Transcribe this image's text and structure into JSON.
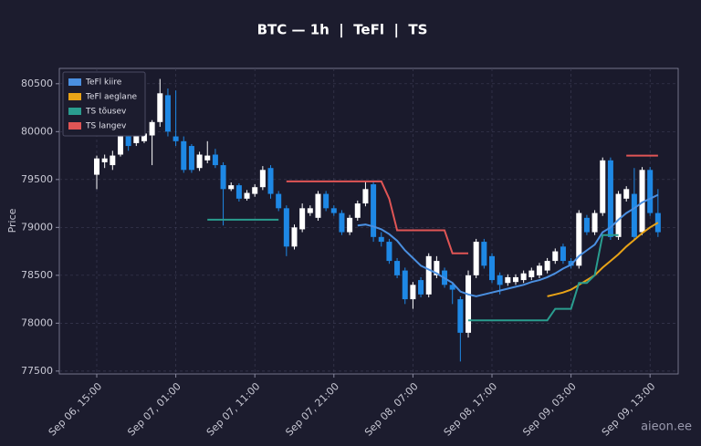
{
  "chart_data": {
    "type": "candlestick",
    "title": "BTC — 1h  |  TeFl  |  TS",
    "y_label": "Price",
    "watermark": "aieon.ee",
    "up_color": "#ffffff",
    "down_color": "#1e88e5",
    "grid": true,
    "legend": "upper-left",
    "x": [
      "Sep 06, 15:00",
      "Sep 06, 16:00",
      "Sep 06, 17:00",
      "Sep 06, 18:00",
      "Sep 06, 19:00",
      "Sep 06, 20:00",
      "Sep 06, 21:00",
      "Sep 06, 22:00",
      "Sep 06, 23:00",
      "Sep 07, 00:00",
      "Sep 07, 01:00",
      "Sep 07, 02:00",
      "Sep 07, 03:00",
      "Sep 07, 04:00",
      "Sep 07, 05:00",
      "Sep 07, 06:00",
      "Sep 07, 07:00",
      "Sep 07, 08:00",
      "Sep 07, 09:00",
      "Sep 07, 10:00",
      "Sep 07, 11:00",
      "Sep 07, 12:00",
      "Sep 07, 13:00",
      "Sep 07, 14:00",
      "Sep 07, 15:00",
      "Sep 07, 16:00",
      "Sep 07, 17:00",
      "Sep 07, 18:00",
      "Sep 07, 19:00",
      "Sep 07, 20:00",
      "Sep 07, 21:00",
      "Sep 07, 22:00",
      "Sep 07, 23:00",
      "Sep 08, 00:00",
      "Sep 08, 01:00",
      "Sep 08, 02:00",
      "Sep 08, 03:00",
      "Sep 08, 04:00",
      "Sep 08, 05:00",
      "Sep 08, 06:00",
      "Sep 08, 07:00",
      "Sep 08, 08:00",
      "Sep 08, 09:00",
      "Sep 08, 10:00",
      "Sep 08, 11:00",
      "Sep 08, 12:00",
      "Sep 08, 13:00",
      "Sep 08, 14:00",
      "Sep 08, 15:00",
      "Sep 08, 16:00",
      "Sep 08, 17:00",
      "Sep 08, 18:00",
      "Sep 08, 19:00",
      "Sep 08, 20:00",
      "Sep 08, 21:00",
      "Sep 08, 22:00",
      "Sep 08, 23:00",
      "Sep 09, 00:00",
      "Sep 09, 01:00",
      "Sep 09, 02:00",
      "Sep 09, 03:00",
      "Sep 09, 04:00",
      "Sep 09, 05:00",
      "Sep 09, 06:00",
      "Sep 09, 07:00",
      "Sep 09, 08:00",
      "Sep 09, 09:00",
      "Sep 09, 10:00",
      "Sep 09, 11:00",
      "Sep 09, 12:00",
      "Sep 09, 13:00",
      "Sep 09, 14:00"
    ],
    "open": [
      79550,
      79680,
      79650,
      79760,
      79950,
      79880,
      79900,
      79960,
      80100,
      80380,
      79950,
      79900,
      79850,
      79620,
      79700,
      79760,
      79650,
      79400,
      79440,
      79300,
      79350,
      79420,
      79620,
      79350,
      79200,
      78800,
      78980,
      79150,
      79100,
      79350,
      79200,
      79150,
      78950,
      79100,
      79250,
      79450,
      78900,
      78850,
      78650,
      78550,
      78250,
      78450,
      78300,
      78500,
      78550,
      78400,
      78250,
      77900,
      78500,
      78850,
      78700,
      78500,
      78420,
      78430,
      78450,
      78480,
      78500,
      78550,
      78650,
      78800,
      78650,
      78600,
      79100,
      78950,
      79150,
      79700,
      78900,
      79300,
      79350,
      78950,
      79600,
      79150
    ],
    "high": [
      79750,
      79760,
      79800,
      79980,
      79970,
      80000,
      80020,
      80120,
      80550,
      80450,
      80430,
      79950,
      79870,
      79790,
      79900,
      79820,
      79680,
      79470,
      79460,
      79390,
      79450,
      79640,
      79650,
      79380,
      79230,
      79030,
      79250,
      79230,
      79380,
      79380,
      79230,
      79180,
      79130,
      79280,
      79480,
      79480,
      78950,
      78880,
      78680,
      78580,
      78430,
      78480,
      78730,
      78700,
      78580,
      78430,
      78280,
      78550,
      78880,
      78880,
      78730,
      78530,
      78510,
      78510,
      78550,
      78580,
      78630,
      78680,
      78780,
      78830,
      78680,
      79180,
      79130,
      79180,
      79730,
      79730,
      79380,
      79430,
      79620,
      79630,
      79630,
      79400
    ],
    "low": [
      79400,
      79620,
      79600,
      79740,
      79800,
      79850,
      79880,
      79650,
      80050,
      79950,
      79850,
      79570,
      79570,
      79590,
      79670,
      79620,
      79020,
      79380,
      79270,
      79280,
      79320,
      79390,
      79300,
      79170,
      78700,
      78770,
      78950,
      79120,
      79070,
      79170,
      79120,
      78920,
      78920,
      79070,
      79220,
      78850,
      78800,
      78620,
      78470,
      78200,
      78150,
      78270,
      78270,
      78470,
      78370,
      78200,
      77600,
      77850,
      78470,
      78570,
      78420,
      78300,
      78390,
      78400,
      78420,
      78450,
      78470,
      78520,
      78620,
      78620,
      78570,
      78570,
      78920,
      78920,
      79120,
      78870,
      78870,
      79270,
      78870,
      78920,
      79120,
      78900
    ],
    "close": [
      79720,
      79720,
      79750,
      79950,
      79850,
      79960,
      79980,
      80100,
      80400,
      80000,
      79900,
      79600,
      79600,
      79760,
      79750,
      79650,
      79400,
      79440,
      79300,
      79360,
      79420,
      79600,
      79350,
      79200,
      78800,
      79000,
      79200,
      79200,
      79350,
      79200,
      79150,
      78950,
      79100,
      79250,
      79400,
      78900,
      78850,
      78650,
      78500,
      78250,
      78400,
      78300,
      78700,
      78650,
      78400,
      78350,
      77900,
      78500,
      78850,
      78600,
      78450,
      78400,
      78480,
      78480,
      78520,
      78550,
      78600,
      78650,
      78750,
      78650,
      78600,
      79150,
      78950,
      79150,
      79700,
      78900,
      79350,
      79400,
      78900,
      79600,
      79150,
      78950
    ],
    "series": [
      {
        "name": "TeFl kiire",
        "color": "#4a8fe0",
        "values": [
          null,
          null,
          null,
          null,
          null,
          null,
          null,
          null,
          null,
          null,
          null,
          null,
          null,
          null,
          null,
          null,
          null,
          null,
          null,
          null,
          null,
          null,
          null,
          null,
          null,
          null,
          null,
          null,
          null,
          null,
          null,
          null,
          null,
          79020,
          79030,
          79010,
          78980,
          78930,
          78860,
          78760,
          78680,
          78600,
          78560,
          78520,
          78470,
          78420,
          78330,
          78300,
          78280,
          78300,
          78320,
          78340,
          78360,
          78380,
          78400,
          78430,
          78450,
          78480,
          78520,
          78570,
          78610,
          78700,
          78760,
          78820,
          78950,
          79000,
          79080,
          79150,
          79200,
          79260,
          79300,
          79340
        ]
      },
      {
        "name": "TeFl aeglane",
        "color": "#e8a317",
        "values": [
          null,
          null,
          null,
          null,
          null,
          null,
          null,
          null,
          null,
          null,
          null,
          null,
          null,
          null,
          null,
          null,
          null,
          null,
          null,
          null,
          null,
          null,
          null,
          null,
          null,
          null,
          null,
          null,
          null,
          null,
          null,
          null,
          null,
          null,
          null,
          null,
          null,
          null,
          null,
          null,
          null,
          null,
          null,
          null,
          null,
          null,
          null,
          null,
          null,
          null,
          null,
          null,
          null,
          null,
          null,
          null,
          null,
          78280,
          78300,
          78320,
          78350,
          78400,
          78450,
          78500,
          78580,
          78650,
          78720,
          78800,
          78870,
          78940,
          79000,
          79050
        ]
      },
      {
        "name": "TS tõusev",
        "color": "#2a9d8f",
        "values": [
          null,
          null,
          null,
          null,
          null,
          null,
          null,
          null,
          null,
          null,
          null,
          null,
          null,
          null,
          79080,
          79080,
          79080,
          79080,
          79080,
          79080,
          79080,
          79080,
          79080,
          79080,
          null,
          null,
          null,
          null,
          null,
          null,
          null,
          null,
          null,
          null,
          null,
          null,
          null,
          null,
          null,
          null,
          null,
          null,
          null,
          null,
          null,
          null,
          null,
          78030,
          78030,
          78030,
          78030,
          78030,
          78030,
          78030,
          78030,
          78030,
          78030,
          78030,
          78150,
          78150,
          78150,
          78420,
          78420,
          78500,
          78920,
          78920,
          78920,
          null,
          null,
          null,
          null,
          null
        ]
      },
      {
        "name": "TS langev",
        "color": "#e05555",
        "values": [
          null,
          null,
          null,
          null,
          null,
          null,
          null,
          null,
          null,
          null,
          null,
          null,
          null,
          null,
          null,
          null,
          null,
          null,
          null,
          null,
          null,
          null,
          null,
          null,
          79480,
          79480,
          79480,
          79480,
          79480,
          79480,
          79480,
          79480,
          79480,
          79480,
          79480,
          79480,
          79480,
          79300,
          78970,
          78970,
          78970,
          78970,
          78970,
          78970,
          78970,
          78730,
          78730,
          78730,
          null,
          null,
          null,
          null,
          null,
          null,
          null,
          null,
          null,
          null,
          null,
          null,
          null,
          null,
          null,
          null,
          null,
          null,
          null,
          79750,
          79750,
          79750,
          79750,
          79750
        ]
      }
    ],
    "ylim": [
      77470,
      80660
    ],
    "yticks": [
      77500,
      78000,
      78500,
      79000,
      79500,
      80000,
      80500
    ],
    "xticks": [
      "Sep 06, 15:00",
      "Sep 07, 01:00",
      "Sep 07, 11:00",
      "Sep 07, 21:00",
      "Sep 08, 07:00",
      "Sep 08, 17:00",
      "Sep 09, 03:00",
      "Sep 09, 13:00"
    ]
  }
}
